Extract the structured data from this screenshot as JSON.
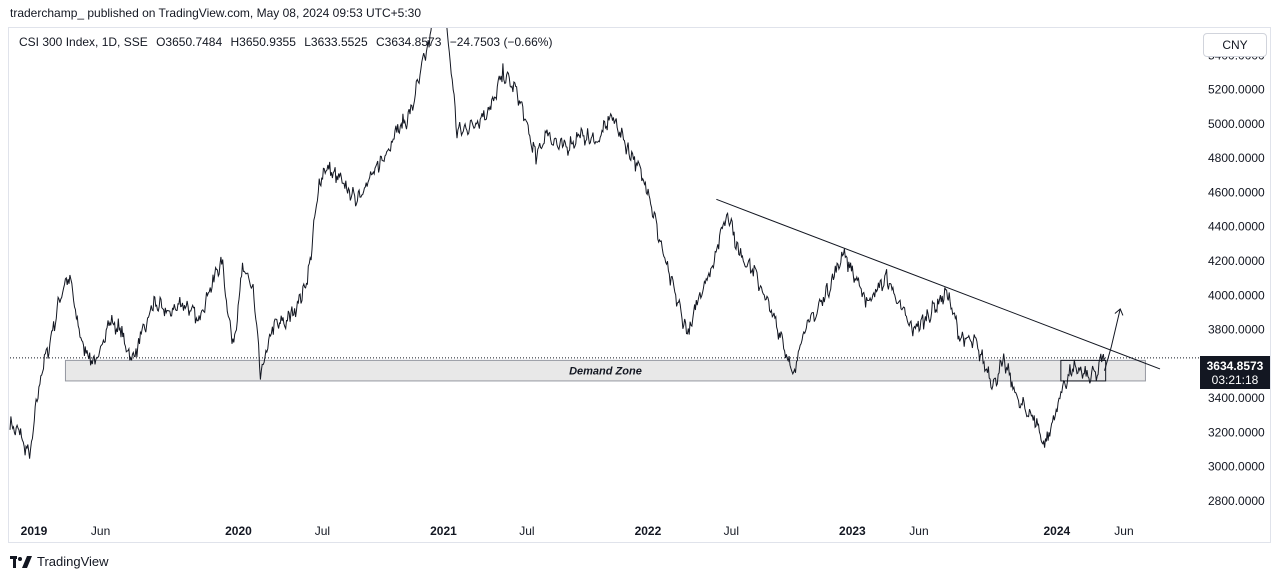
{
  "header": {
    "publish_info": "traderchamp_ published on TradingView.com, May 08, 2024 09:53 UTC+5:30"
  },
  "legend": {
    "symbol": "CSI 300 Index, 1D, SSE",
    "open": "O3650.7484",
    "high": "H3650.9355",
    "low": "L3633.5525",
    "close": "C3634.8573",
    "change": "−24.7503 (−0.66%)"
  },
  "currency_button": "CNY",
  "last_price": {
    "price": "3634.8573",
    "countdown": "03:21:18"
  },
  "footer": {
    "brand": "TradingView"
  },
  "chart_data": {
    "type": "line",
    "title": "",
    "xlabel": "",
    "ylabel": "",
    "ylim": [
      2700,
      5560
    ],
    "xlim": [
      "2019-01-01",
      "2024-08-15"
    ],
    "x_ticks": [
      {
        "date": "2019-01-01",
        "label": "2019"
      },
      {
        "date": "2019-06-01",
        "label": "Jun"
      },
      {
        "date": "2020-01-01",
        "label": "2020"
      },
      {
        "date": "2020-07-01",
        "label": "Jul"
      },
      {
        "date": "2021-01-01",
        "label": "2021"
      },
      {
        "date": "2021-07-01",
        "label": "Jul"
      },
      {
        "date": "2022-01-01",
        "label": "2022"
      },
      {
        "date": "2022-07-01",
        "label": "Jul"
      },
      {
        "date": "2023-01-01",
        "label": "2023"
      },
      {
        "date": "2023-06-01",
        "label": "Jun"
      },
      {
        "date": "2024-01-01",
        "label": "2024"
      },
      {
        "date": "2024-06-01",
        "label": "Jun"
      }
    ],
    "y_ticks": [
      {
        "value": 2800,
        "label": "2800.0000"
      },
      {
        "value": 3000,
        "label": "3000.0000"
      },
      {
        "value": 3200,
        "label": "3200.0000"
      },
      {
        "value": 3400,
        "label": "3400.0000"
      },
      {
        "value": 3600,
        "label": "3600.0000"
      },
      {
        "value": 3800,
        "label": "3800.0000"
      },
      {
        "value": 4000,
        "label": "4000.0000"
      },
      {
        "value": 4200,
        "label": "4200.0000"
      },
      {
        "value": 4400,
        "label": "4400.0000"
      },
      {
        "value": 4600,
        "label": "4600.0000"
      },
      {
        "value": 4800,
        "label": "4800.0000"
      },
      {
        "value": 5000,
        "label": "5000.0000"
      },
      {
        "value": 5200,
        "label": "5200.0000"
      },
      {
        "value": 5400,
        "label": "5400.0000"
      }
    ],
    "series": [
      {
        "points": [
          [
            "2019-01-01",
            3250
          ],
          [
            "2019-01-20",
            3180
          ],
          [
            "2019-02-05",
            3050
          ],
          [
            "2019-02-25",
            3550
          ],
          [
            "2019-03-10",
            3680
          ],
          [
            "2019-04-05",
            4050
          ],
          [
            "2019-04-18",
            4100
          ],
          [
            "2019-05-06",
            3750
          ],
          [
            "2019-05-20",
            3650
          ],
          [
            "2019-06-05",
            3600
          ],
          [
            "2019-06-25",
            3850
          ],
          [
            "2019-07-15",
            3810
          ],
          [
            "2019-08-06",
            3620
          ],
          [
            "2019-08-25",
            3760
          ],
          [
            "2019-09-15",
            3960
          ],
          [
            "2019-10-10",
            3890
          ],
          [
            "2019-11-05",
            3960
          ],
          [
            "2019-12-03",
            3860
          ],
          [
            "2019-12-31",
            4100
          ],
          [
            "2020-01-14",
            4200
          ],
          [
            "2020-02-03",
            3690
          ],
          [
            "2020-02-20",
            4150
          ],
          [
            "2020-03-10",
            4050
          ],
          [
            "2020-03-23",
            3530
          ],
          [
            "2020-04-15",
            3820
          ],
          [
            "2020-05-15",
            3860
          ],
          [
            "2020-06-15",
            4080
          ],
          [
            "2020-07-06",
            4650
          ],
          [
            "2020-07-15",
            4750
          ],
          [
            "2020-08-05",
            4700
          ],
          [
            "2020-09-09",
            4560
          ],
          [
            "2020-10-20",
            4750
          ],
          [
            "2020-11-20",
            4950
          ],
          [
            "2020-12-15",
            5050
          ],
          [
            "2021-01-15",
            5450
          ],
          [
            "2021-02-10",
            5800
          ],
          [
            "2021-02-25",
            5380
          ],
          [
            "2021-03-09",
            4950
          ],
          [
            "2021-04-10",
            5000
          ],
          [
            "2021-05-10",
            5100
          ],
          [
            "2021-05-30",
            5300
          ],
          [
            "2021-06-25",
            5180
          ],
          [
            "2021-07-28",
            4800
          ],
          [
            "2021-08-15",
            4950
          ],
          [
            "2021-09-15",
            4850
          ],
          [
            "2021-10-15",
            4930
          ],
          [
            "2021-11-15",
            4900
          ],
          [
            "2021-12-10",
            5050
          ],
          [
            "2022-01-10",
            4850
          ],
          [
            "2022-02-10",
            4650
          ],
          [
            "2022-03-15",
            4200
          ],
          [
            "2022-04-26",
            3760
          ],
          [
            "2022-05-15",
            4000
          ],
          [
            "2022-06-05",
            4150
          ],
          [
            "2022-07-05",
            4500
          ],
          [
            "2022-07-25",
            4250
          ],
          [
            "2022-08-20",
            4150
          ],
          [
            "2022-09-15",
            3950
          ],
          [
            "2022-10-10",
            3750
          ],
          [
            "2022-10-31",
            3520
          ],
          [
            "2022-11-15",
            3780
          ],
          [
            "2022-12-10",
            3900
          ],
          [
            "2023-01-10",
            4100
          ],
          [
            "2023-01-28",
            4250
          ],
          [
            "2023-03-10",
            3960
          ],
          [
            "2023-04-15",
            4100
          ],
          [
            "2023-05-30",
            3800
          ],
          [
            "2023-06-20",
            3850
          ],
          [
            "2023-07-31",
            4020
          ],
          [
            "2023-08-25",
            3750
          ],
          [
            "2023-09-20",
            3720
          ],
          [
            "2023-10-23",
            3480
          ],
          [
            "2023-11-10",
            3620
          ],
          [
            "2023-12-08",
            3370
          ],
          [
            "2024-01-05",
            3280
          ],
          [
            "2024-01-22",
            3120
          ],
          [
            "2024-02-05",
            3250
          ],
          [
            "2024-02-25",
            3480
          ],
          [
            "2024-03-15",
            3580
          ],
          [
            "2024-04-10",
            3520
          ],
          [
            "2024-04-25",
            3550
          ],
          [
            "2024-05-06",
            3650
          ],
          [
            "2024-05-08",
            3635
          ]
        ]
      }
    ],
    "last_value": 3634.8573,
    "demand_zone": {
      "label": "Demand Zone",
      "from": "2019-04-10",
      "to": "2024-07-20",
      "low": 3500,
      "high": 3620
    },
    "trendline": {
      "from": [
        "2022-06-15",
        4560
      ],
      "to": [
        "2024-08-15",
        3570
      ]
    },
    "projection": {
      "points": [
        [
          "2024-05-08",
          3560
        ],
        [
          "2024-05-20",
          3700
        ],
        [
          "2024-06-05",
          3920
        ]
      ]
    },
    "consolidation_box": {
      "from": "2024-02-20",
      "to": "2024-05-10",
      "low": 3500,
      "high": 3620
    }
  }
}
